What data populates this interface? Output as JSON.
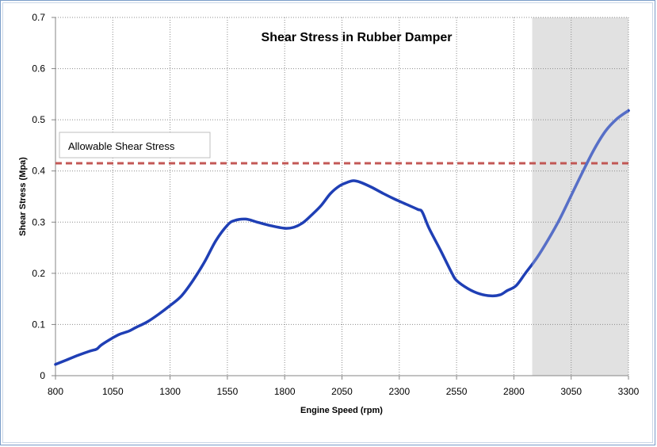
{
  "chart_data": {
    "type": "line",
    "title": "Shear Stress in Rubber Damper",
    "xlabel": "Engine Speed (rpm)",
    "ylabel": "Shear Stress (Mpa)",
    "xlim": [
      800,
      3300
    ],
    "ylim": [
      0,
      0.7
    ],
    "x_ticks": [
      "800",
      "1050",
      "1300",
      "1550",
      "1800",
      "2050",
      "2300",
      "2550",
      "2800",
      "3050",
      "3300"
    ],
    "y_ticks": [
      "0",
      "0.1",
      "0.2",
      "0.3",
      "0.4",
      "0.5",
      "0.6",
      "0.7"
    ],
    "grid": true,
    "series": [
      {
        "color": "#1f3fb5",
        "points": [
          [
            800,
            0.022
          ],
          [
            850,
            0.031
          ],
          [
            900,
            0.04
          ],
          [
            950,
            0.048
          ],
          [
            980,
            0.052
          ],
          [
            1000,
            0.06
          ],
          [
            1050,
            0.074
          ],
          [
            1080,
            0.081
          ],
          [
            1120,
            0.087
          ],
          [
            1150,
            0.094
          ],
          [
            1200,
            0.105
          ],
          [
            1250,
            0.12
          ],
          [
            1300,
            0.137
          ],
          [
            1350,
            0.156
          ],
          [
            1400,
            0.186
          ],
          [
            1450,
            0.222
          ],
          [
            1500,
            0.264
          ],
          [
            1550,
            0.294
          ],
          [
            1580,
            0.303
          ],
          [
            1630,
            0.306
          ],
          [
            1680,
            0.3
          ],
          [
            1740,
            0.293
          ],
          [
            1800,
            0.288
          ],
          [
            1840,
            0.29
          ],
          [
            1880,
            0.299
          ],
          [
            1920,
            0.315
          ],
          [
            1960,
            0.333
          ],
          [
            2000,
            0.356
          ],
          [
            2040,
            0.371
          ],
          [
            2075,
            0.378
          ],
          [
            2100,
            0.381
          ],
          [
            2130,
            0.378
          ],
          [
            2180,
            0.368
          ],
          [
            2230,
            0.356
          ],
          [
            2280,
            0.345
          ],
          [
            2330,
            0.335
          ],
          [
            2380,
            0.325
          ],
          [
            2400,
            0.32
          ],
          [
            2430,
            0.288
          ],
          [
            2480,
            0.245
          ],
          [
            2530,
            0.2
          ],
          [
            2550,
            0.186
          ],
          [
            2600,
            0.17
          ],
          [
            2650,
            0.16
          ],
          [
            2700,
            0.156
          ],
          [
            2740,
            0.158
          ],
          [
            2770,
            0.166
          ],
          [
            2810,
            0.176
          ],
          [
            2850,
            0.2
          ],
          [
            2900,
            0.23
          ],
          [
            2950,
            0.266
          ],
          [
            3000,
            0.306
          ],
          [
            3050,
            0.352
          ],
          [
            3100,
            0.398
          ],
          [
            3150,
            0.442
          ],
          [
            3200,
            0.478
          ],
          [
            3250,
            0.502
          ],
          [
            3300,
            0.518
          ]
        ]
      }
    ],
    "reference_line": {
      "label": "Allowable Shear Stress",
      "y": 0.415,
      "color": "#c0504d",
      "style": "dashed"
    },
    "shaded_region": {
      "x_range": [
        2880,
        3300
      ],
      "color": "#e1e1e1"
    }
  }
}
